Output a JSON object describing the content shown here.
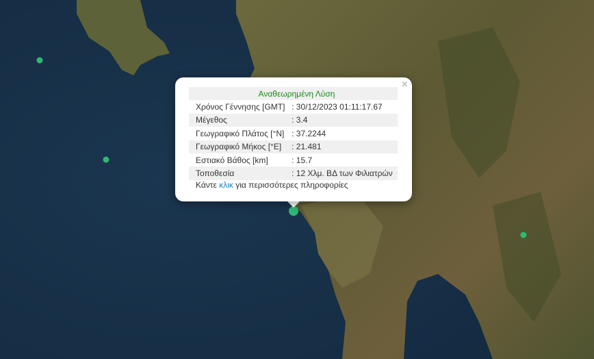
{
  "popup": {
    "title": "Αναθεωρημένη Λύση",
    "close_icon": "close-icon",
    "rows": [
      {
        "label": "Χρόνος Γέννησης [GMT]",
        "value": ": 30/12/2023 01:11:17.67"
      },
      {
        "label": "Μέγεθος",
        "value": ": 3.4"
      },
      {
        "label": "Γεωγραφικό Πλάτος [°N]",
        "value": ": 37.2244"
      },
      {
        "label": "Γεωγραφικό Μήκος [°E]",
        "value": ": 21.481"
      },
      {
        "label": "Εστιακό Βάθος [km]",
        "value": ": 15.7"
      },
      {
        "label": "Τοποθεσία",
        "value": ": 12 Χλμ. ΒΔ των Φιλιατρών"
      }
    ],
    "more_prefix": "Κάντε ",
    "more_link": "κλικ",
    "more_suffix": " για περισσότερες πληροφορίες"
  },
  "colors": {
    "marker": "#2eb872",
    "title": "#1a8a1a",
    "link": "#1a7fb5"
  }
}
